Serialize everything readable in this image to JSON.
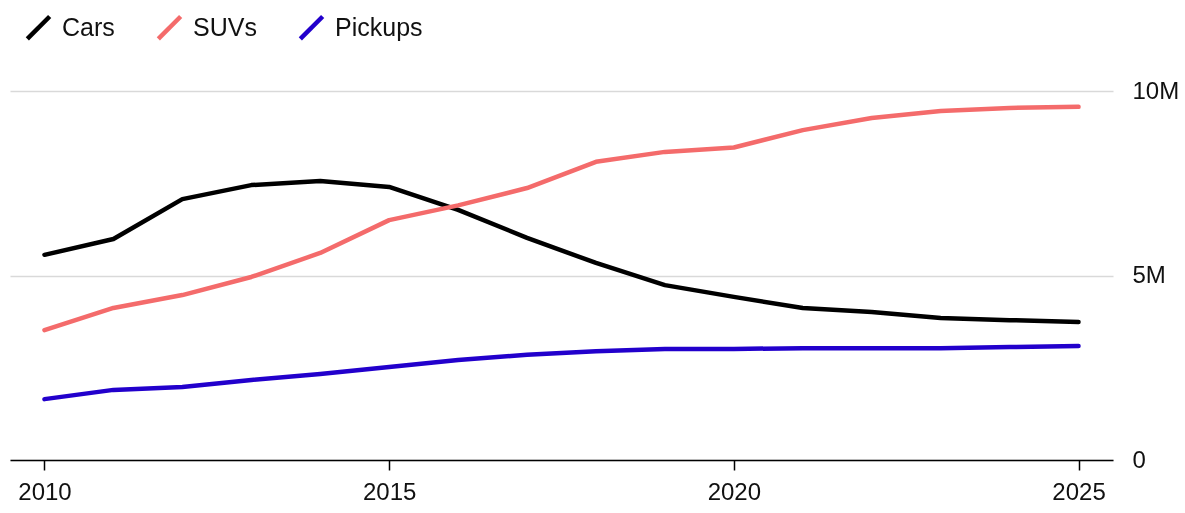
{
  "chart_data": {
    "type": "line",
    "x": [
      2010,
      2011,
      2012,
      2013,
      2014,
      2015,
      2016,
      2017,
      2018,
      2019,
      2020,
      2021,
      2022,
      2023,
      2024,
      2025
    ],
    "series": [
      {
        "name": "Cars",
        "color": "#000000",
        "values": [
          5.56,
          5.99,
          7.07,
          7.45,
          7.56,
          7.4,
          6.78,
          6.02,
          5.34,
          4.74,
          4.42,
          4.12,
          4.01,
          3.85,
          3.79,
          3.74
        ]
      },
      {
        "name": "SUVs",
        "color": "#f46b6b",
        "values": [
          3.52,
          4.12,
          4.47,
          4.96,
          5.61,
          6.5,
          6.9,
          7.37,
          8.08,
          8.35,
          8.47,
          8.94,
          9.27,
          9.46,
          9.54,
          9.57
        ]
      },
      {
        "name": "Pickups",
        "color": "#2200cc",
        "values": [
          1.65,
          1.9,
          1.98,
          2.17,
          2.33,
          2.52,
          2.71,
          2.85,
          2.95,
          3.01,
          3.01,
          3.03,
          3.03,
          3.03,
          3.06,
          3.09
        ]
      }
    ],
    "xlim": [
      2009.5,
      2025.5
    ],
    "xticks": [
      2010,
      2015,
      2020,
      2025
    ],
    "ylim": [
      0,
      10
    ],
    "yticks": [
      0,
      {
        "value": 5,
        "label": "5M"
      },
      {
        "value": 10,
        "label": "10M"
      }
    ],
    "grid": "y",
    "legend": "top left",
    "line_style": "solid"
  }
}
